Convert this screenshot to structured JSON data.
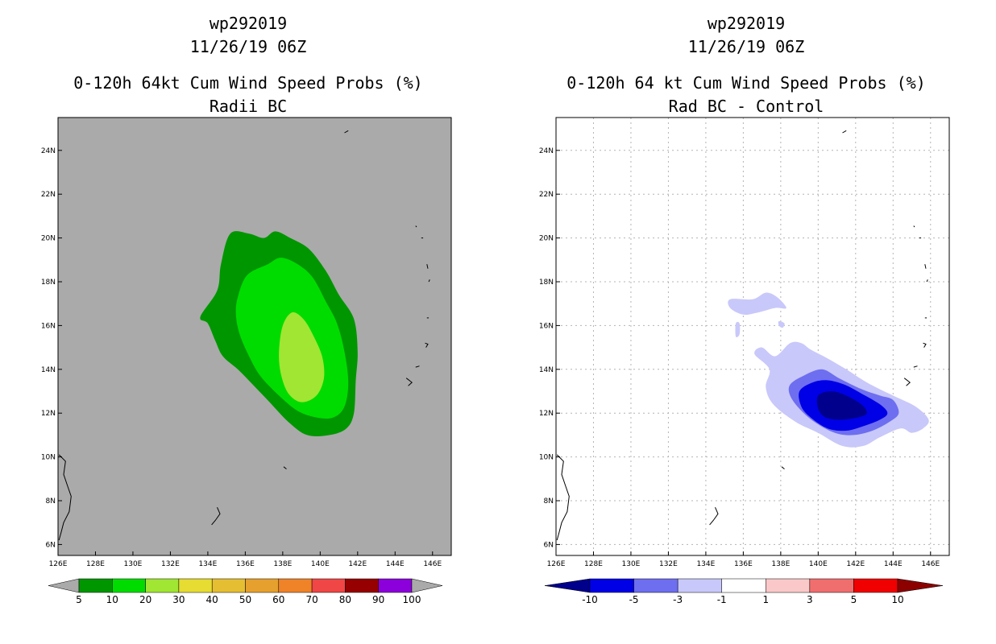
{
  "chart_data": [
    {
      "type": "contour-map",
      "title_lines": [
        "wp292019",
        "11/26/19 06Z",
        "0-120h 64kt Cum Wind Speed Probs (%)",
        "Radii BC"
      ],
      "xlim": [
        126,
        147
      ],
      "ylim": [
        5.5,
        25.5
      ],
      "x_ticks": [
        126,
        128,
        130,
        132,
        134,
        136,
        138,
        140,
        142,
        144,
        146
      ],
      "x_tick_labels": [
        "126E",
        "128E",
        "130E",
        "132E",
        "134E",
        "136E",
        "138E",
        "140E",
        "142E",
        "144E",
        "146E"
      ],
      "y_ticks": [
        6,
        8,
        10,
        12,
        14,
        16,
        18,
        20,
        22,
        24
      ],
      "y_tick_labels": [
        "6N",
        "8N",
        "10N",
        "12N",
        "14N",
        "16N",
        "18N",
        "20N",
        "22N",
        "24N"
      ],
      "grid": false,
      "background": "#aaaaaa",
      "colorbar": {
        "labels": [
          "5",
          "10",
          "20",
          "30",
          "40",
          "50",
          "60",
          "70",
          "80",
          "90",
          "100"
        ],
        "colors": [
          "#aaaaaa",
          "#009600",
          "#00dc00",
          "#a0e632",
          "#e6dc32",
          "#e6be32",
          "#e6a02d",
          "#f08228",
          "#f04646",
          "#960000",
          "#8c00dc",
          "#aaaaaa"
        ]
      },
      "contours": [
        {
          "level": 5,
          "color": "#009600",
          "points": [
            [
              133.6,
              16.4
            ],
            [
              134.5,
              17.6
            ],
            [
              134.7,
              18.8
            ],
            [
              135.2,
              20.2
            ],
            [
              136.2,
              20.2
            ],
            [
              137.0,
              20.0
            ],
            [
              137.6,
              20.3
            ],
            [
              138.4,
              20.0
            ],
            [
              139.4,
              19.5
            ],
            [
              140.3,
              18.5
            ],
            [
              141.0,
              17.4
            ],
            [
              141.8,
              16.3
            ],
            [
              142.0,
              14.8
            ],
            [
              141.9,
              13.5
            ],
            [
              141.8,
              12.0
            ],
            [
              141.4,
              11.3
            ],
            [
              140.5,
              11.0
            ],
            [
              139.3,
              11.0
            ],
            [
              138.3,
              11.6
            ],
            [
              137.3,
              12.5
            ],
            [
              136.4,
              13.3
            ],
            [
              135.6,
              14.0
            ],
            [
              134.8,
              14.6
            ],
            [
              134.4,
              15.3
            ],
            [
              134.0,
              16.1
            ]
          ]
        },
        {
          "level": 10,
          "color": "#00dc00",
          "points": [
            [
              135.6,
              17.3
            ],
            [
              136.1,
              18.3
            ],
            [
              137.2,
              18.8
            ],
            [
              137.9,
              19.1
            ],
            [
              138.8,
              18.8
            ],
            [
              139.6,
              18.2
            ],
            [
              140.3,
              17.1
            ],
            [
              140.9,
              16.1
            ],
            [
              141.3,
              14.8
            ],
            [
              141.5,
              13.4
            ],
            [
              141.3,
              12.3
            ],
            [
              140.7,
              11.8
            ],
            [
              139.8,
              11.8
            ],
            [
              138.8,
              12.1
            ],
            [
              137.8,
              12.8
            ],
            [
              136.8,
              13.7
            ],
            [
              136.2,
              14.6
            ],
            [
              135.7,
              15.6
            ],
            [
              135.5,
              16.5
            ]
          ]
        },
        {
          "level": 20,
          "color": "#a0e632",
          "points": [
            [
              138.0,
              16.0
            ],
            [
              138.5,
              16.6
            ],
            [
              139.1,
              16.3
            ],
            [
              139.6,
              15.6
            ],
            [
              140.1,
              14.6
            ],
            [
              140.2,
              13.6
            ],
            [
              139.8,
              12.8
            ],
            [
              139.0,
              12.5
            ],
            [
              138.3,
              12.9
            ],
            [
              137.9,
              13.8
            ],
            [
              137.8,
              14.8
            ]
          ]
        }
      ],
      "coastlines": [
        [
          [
            126.05,
            10.1
          ],
          [
            126.4,
            9.8
          ],
          [
            126.3,
            9.2
          ],
          [
            126.5,
            8.7
          ],
          [
            126.7,
            8.2
          ],
          [
            126.6,
            7.5
          ],
          [
            126.3,
            7.0
          ],
          [
            126.15,
            6.5
          ],
          [
            126.05,
            6.2
          ]
        ],
        [
          [
            134.5,
            7.7
          ],
          [
            134.65,
            7.4
          ],
          [
            134.4,
            7.1
          ],
          [
            134.2,
            6.9
          ]
        ],
        [
          [
            138.05,
            9.55
          ],
          [
            138.2,
            9.45
          ]
        ],
        [
          [
            144.6,
            13.6
          ],
          [
            144.9,
            13.4
          ],
          [
            144.7,
            13.25
          ]
        ],
        [
          [
            145.1,
            14.1
          ],
          [
            145.3,
            14.15
          ]
        ],
        [
          [
            145.6,
            15.2
          ],
          [
            145.75,
            15.15
          ],
          [
            145.65,
            15.0
          ]
        ],
        [
          [
            145.7,
            16.35
          ],
          [
            145.8,
            16.35
          ]
        ],
        [
          [
            145.8,
            18.0
          ],
          [
            145.85,
            18.1
          ]
        ],
        [
          [
            145.7,
            18.8
          ],
          [
            145.75,
            18.6
          ]
        ],
        [
          [
            145.4,
            20.0
          ],
          [
            145.5,
            20.0
          ]
        ],
        [
          [
            145.1,
            20.55
          ],
          [
            145.15,
            20.5
          ]
        ],
        [
          [
            141.3,
            24.8
          ],
          [
            141.5,
            24.9
          ]
        ]
      ]
    },
    {
      "type": "contour-map",
      "title_lines": [
        "wp292019",
        "11/26/19 06Z",
        "0-120h 64 kt Cum Wind Speed Probs (%)",
        "Rad BC - Control"
      ],
      "xlim": [
        126,
        147
      ],
      "ylim": [
        5.5,
        25.5
      ],
      "x_ticks": [
        126,
        128,
        130,
        132,
        134,
        136,
        138,
        140,
        142,
        144,
        146
      ],
      "x_tick_labels": [
        "126E",
        "128E",
        "130E",
        "132E",
        "134E",
        "136E",
        "138E",
        "140E",
        "142E",
        "144E",
        "146E"
      ],
      "y_ticks": [
        6,
        8,
        10,
        12,
        14,
        16,
        18,
        20,
        22,
        24
      ],
      "y_tick_labels": [
        "6N",
        "8N",
        "10N",
        "12N",
        "14N",
        "16N",
        "18N",
        "20N",
        "22N",
        "24N"
      ],
      "grid": true,
      "background": "#ffffff",
      "colorbar": {
        "labels": [
          "-10",
          "-5",
          "-3",
          "-1",
          "1",
          "3",
          "5",
          "10"
        ],
        "colors": [
          "#00008c",
          "#0000e6",
          "#6e6ef0",
          "#c8c8fa",
          "#ffffff",
          "#fac8c8",
          "#f06e6e",
          "#f00000",
          "#8c0000"
        ]
      },
      "contours": [
        {
          "level": -1,
          "color": "#c8c8fa",
          "points": [
            [
              136.6,
              14.7
            ],
            [
              137.4,
              14.0
            ],
            [
              137.2,
              13.2
            ],
            [
              137.6,
              12.4
            ],
            [
              138.8,
              11.6
            ],
            [
              140.0,
              11.1
            ],
            [
              141.3,
              10.5
            ],
            [
              142.4,
              10.5
            ],
            [
              143.3,
              10.9
            ],
            [
              144.4,
              11.3
            ],
            [
              145.0,
              11.1
            ],
            [
              145.6,
              11.3
            ],
            [
              145.9,
              11.7
            ],
            [
              145.2,
              12.3
            ],
            [
              144.0,
              12.8
            ],
            [
              142.6,
              13.4
            ],
            [
              141.5,
              14.0
            ],
            [
              140.5,
              14.5
            ],
            [
              139.6,
              14.9
            ],
            [
              139.1,
              15.2
            ],
            [
              138.5,
              15.2
            ],
            [
              137.7,
              14.6
            ],
            [
              137.0,
              15.0
            ]
          ]
        },
        {
          "level": -1,
          "color": "#c8c8fa",
          "points": [
            [
              135.3,
              17.2
            ],
            [
              136.5,
              17.2
            ],
            [
              137.2,
              17.5
            ],
            [
              137.8,
              17.3
            ],
            [
              138.3,
              16.8
            ],
            [
              137.7,
              16.8
            ],
            [
              136.8,
              16.6
            ],
            [
              136.0,
              16.5
            ],
            [
              135.3,
              16.8
            ]
          ]
        },
        {
          "level": -1,
          "color": "#c8c8fa",
          "points": [
            [
              135.6,
              16.1
            ],
            [
              135.8,
              16.1
            ],
            [
              135.8,
              15.6
            ],
            [
              135.6,
              15.5
            ]
          ]
        },
        {
          "level": -1,
          "color": "#c8c8fa",
          "points": [
            [
              137.9,
              16.2
            ],
            [
              138.2,
              16.1
            ],
            [
              138.1,
              15.9
            ],
            [
              137.9,
              16.0
            ]
          ]
        },
        {
          "level": -3,
          "color": "#6e6ef0",
          "points": [
            [
              138.5,
              13.3
            ],
            [
              139.2,
              13.7
            ],
            [
              140.2,
              14.0
            ],
            [
              141.1,
              13.6
            ],
            [
              142.3,
              13.1
            ],
            [
              143.3,
              12.8
            ],
            [
              144.0,
              12.6
            ],
            [
              144.3,
              12.0
            ],
            [
              143.8,
              11.6
            ],
            [
              142.9,
              11.2
            ],
            [
              141.9,
              11.0
            ],
            [
              140.9,
              11.1
            ],
            [
              139.8,
              11.6
            ],
            [
              139.0,
              12.2
            ],
            [
              138.5,
              12.8
            ]
          ]
        },
        {
          "level": -5,
          "color": "#0000e6",
          "points": [
            [
              139.0,
              13.0
            ],
            [
              139.7,
              13.4
            ],
            [
              140.5,
              13.5
            ],
            [
              141.4,
              13.3
            ],
            [
              142.3,
              12.9
            ],
            [
              143.3,
              12.4
            ],
            [
              143.7,
              12.0
            ],
            [
              143.3,
              11.7
            ],
            [
              142.4,
              11.4
            ],
            [
              141.5,
              11.2
            ],
            [
              140.5,
              11.3
            ],
            [
              139.6,
              11.8
            ],
            [
              139.1,
              12.3
            ]
          ]
        },
        {
          "level": -10,
          "color": "#00008c",
          "points": [
            [
              140.0,
              12.8
            ],
            [
              140.7,
              13.0
            ],
            [
              141.5,
              12.8
            ],
            [
              142.3,
              12.4
            ],
            [
              142.6,
              12.0
            ],
            [
              142.1,
              11.8
            ],
            [
              141.2,
              11.7
            ],
            [
              140.4,
              11.8
            ],
            [
              140.0,
              12.2
            ]
          ]
        }
      ],
      "coastlines": [
        [
          [
            126.05,
            10.1
          ],
          [
            126.4,
            9.8
          ],
          [
            126.3,
            9.2
          ],
          [
            126.5,
            8.7
          ],
          [
            126.7,
            8.2
          ],
          [
            126.6,
            7.5
          ],
          [
            126.3,
            7.0
          ],
          [
            126.15,
            6.5
          ],
          [
            126.05,
            6.2
          ]
        ],
        [
          [
            134.5,
            7.7
          ],
          [
            134.65,
            7.4
          ],
          [
            134.4,
            7.1
          ],
          [
            134.2,
            6.9
          ]
        ],
        [
          [
            138.05,
            9.55
          ],
          [
            138.2,
            9.45
          ]
        ],
        [
          [
            144.6,
            13.6
          ],
          [
            144.9,
            13.4
          ],
          [
            144.7,
            13.25
          ]
        ],
        [
          [
            145.1,
            14.1
          ],
          [
            145.3,
            14.15
          ]
        ],
        [
          [
            145.6,
            15.2
          ],
          [
            145.75,
            15.15
          ],
          [
            145.65,
            15.0
          ]
        ],
        [
          [
            145.7,
            16.35
          ],
          [
            145.8,
            16.35
          ]
        ],
        [
          [
            145.8,
            18.0
          ],
          [
            145.85,
            18.1
          ]
        ],
        [
          [
            145.7,
            18.8
          ],
          [
            145.75,
            18.6
          ]
        ],
        [
          [
            145.4,
            20.0
          ],
          [
            145.5,
            20.0
          ]
        ],
        [
          [
            145.1,
            20.55
          ],
          [
            145.15,
            20.5
          ]
        ],
        [
          [
            141.3,
            24.8
          ],
          [
            141.5,
            24.9
          ]
        ]
      ]
    }
  ]
}
